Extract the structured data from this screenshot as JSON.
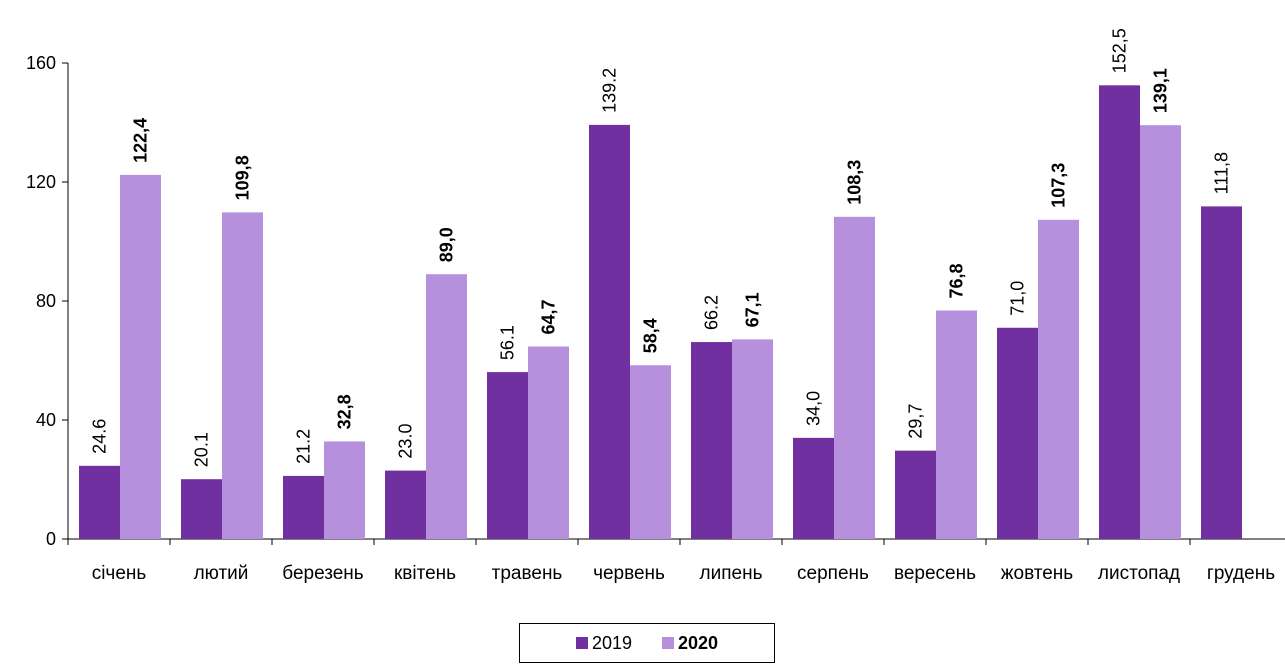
{
  "chart_data": {
    "type": "bar",
    "title": "",
    "xlabel": "",
    "ylabel": "",
    "ylim": [
      0,
      160
    ],
    "yticks": [
      0,
      40,
      80,
      120,
      160
    ],
    "ytick_labels": [
      "0",
      "40",
      "80",
      "120",
      "160"
    ],
    "grid": false,
    "legend": "bottom-center",
    "categories": [
      "січень",
      "лютий",
      "березень",
      "квітень",
      "травень",
      "червень",
      "липень",
      "серпень",
      "вересень",
      "жовтень",
      "листопад",
      "грудень"
    ],
    "series": [
      {
        "name": "2019",
        "color": "#7030A0",
        "bold": false,
        "values": [
          24.6,
          20.1,
          21.2,
          23.0,
          56.1,
          139.2,
          66.2,
          34.0,
          29.7,
          71.0,
          152.5,
          111.8
        ],
        "labels": [
          "24.6",
          "20.1",
          "21.2",
          "23.0",
          "56.1",
          "139.2",
          "66.2",
          "34,0",
          "29,7",
          "71,0",
          "152,5",
          "111,8"
        ]
      },
      {
        "name": "2020",
        "color": "#B68FDD",
        "bold": true,
        "values": [
          122.4,
          109.8,
          32.8,
          89.0,
          64.7,
          58.4,
          67.1,
          108.3,
          76.8,
          107.3,
          139.1,
          null
        ],
        "labels": [
          "122,4",
          "109,8",
          "32,8",
          "89,0",
          "64,7",
          "58,4",
          "67,1",
          "108,3",
          "76,8",
          "107,3",
          "139,1",
          ""
        ]
      }
    ]
  }
}
